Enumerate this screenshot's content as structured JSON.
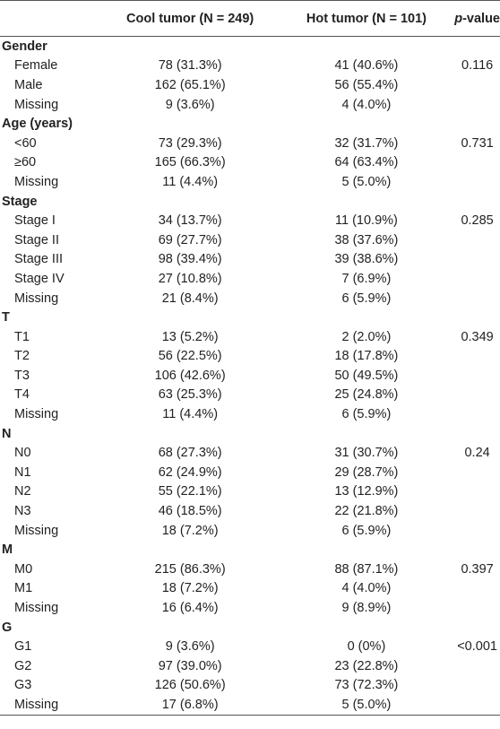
{
  "header": {
    "cool": "Cool tumor (N = 249)",
    "hot": "Hot tumor (N = 101)",
    "p_value": [
      "p",
      "-value"
    ]
  },
  "sections": [
    {
      "title": "Gender",
      "rows": [
        {
          "label": "Female",
          "cool": "78 (31.3%)",
          "hot": "41 (40.6%)",
          "p": "0.116"
        },
        {
          "label": "Male",
          "cool": "162 (65.1%)",
          "hot": "56 (55.4%)"
        },
        {
          "label": "Missing",
          "cool": "9 (3.6%)",
          "hot": "4 (4.0%)"
        }
      ]
    },
    {
      "title": "Age (years)",
      "rows": [
        {
          "label": "<60",
          "cool": "73 (29.3%)",
          "hot": "32 (31.7%)",
          "p": "0.731"
        },
        {
          "label": "≥60",
          "cool": "165 (66.3%)",
          "hot": "64 (63.4%)"
        },
        {
          "label": "Missing",
          "cool": "11 (4.4%)",
          "hot": "5 (5.0%)"
        }
      ]
    },
    {
      "title": "Stage",
      "rows": [
        {
          "label": "Stage I",
          "cool": "34 (13.7%)",
          "hot": "11 (10.9%)",
          "p": "0.285"
        },
        {
          "label": "Stage II",
          "cool": "69 (27.7%)",
          "hot": "38 (37.6%)"
        },
        {
          "label": "Stage III",
          "cool": "98 (39.4%)",
          "hot": "39 (38.6%)"
        },
        {
          "label": "Stage IV",
          "cool": "27 (10.8%)",
          "hot": "7 (6.9%)"
        },
        {
          "label": "Missing",
          "cool": "21 (8.4%)",
          "hot": "6 (5.9%)"
        }
      ]
    },
    {
      "title": "T",
      "rows": [
        {
          "label": "T1",
          "cool": "13 (5.2%)",
          "hot": "2 (2.0%)",
          "p": "0.349"
        },
        {
          "label": "T2",
          "cool": "56 (22.5%)",
          "hot": "18 (17.8%)"
        },
        {
          "label": "T3",
          "cool": "106 (42.6%)",
          "hot": "50 (49.5%)"
        },
        {
          "label": "T4",
          "cool": "63 (25.3%)",
          "hot": "25 (24.8%)"
        },
        {
          "label": "Missing",
          "cool": "11 (4.4%)",
          "hot": "6 (5.9%)"
        }
      ]
    },
    {
      "title": "N",
      "rows": [
        {
          "label": "N0",
          "cool": "68 (27.3%)",
          "hot": "31 (30.7%)",
          "p": "0.24"
        },
        {
          "label": "N1",
          "cool": "62 (24.9%)",
          "hot": "29 (28.7%)"
        },
        {
          "label": "N2",
          "cool": "55 (22.1%)",
          "hot": "13 (12.9%)"
        },
        {
          "label": "N3",
          "cool": "46 (18.5%)",
          "hot": "22 (21.8%)"
        },
        {
          "label": "Missing",
          "cool": "18 (7.2%)",
          "hot": "6 (5.9%)"
        }
      ]
    },
    {
      "title": "M",
      "rows": [
        {
          "label": "M0",
          "cool": "215 (86.3%)",
          "hot": "88 (87.1%)",
          "p": "0.397"
        },
        {
          "label": "M1",
          "cool": "18 (7.2%)",
          "hot": "4 (4.0%)"
        },
        {
          "label": "Missing",
          "cool": "16 (6.4%)",
          "hot": "9 (8.9%)"
        }
      ]
    },
    {
      "title": "G",
      "rows": [
        {
          "label": "G1",
          "cool": "9 (3.6%)",
          "hot": "0 (0%)",
          "p": "<0.001"
        },
        {
          "label": "G2",
          "cool": "97 (39.0%)",
          "hot": "23 (22.8%)"
        },
        {
          "label": "G3",
          "cool": "126 (50.6%)",
          "hot": "73 (72.3%)"
        },
        {
          "label": "Missing",
          "cool": "17 (6.8%)",
          "hot": "5 (5.0%)"
        }
      ]
    }
  ]
}
